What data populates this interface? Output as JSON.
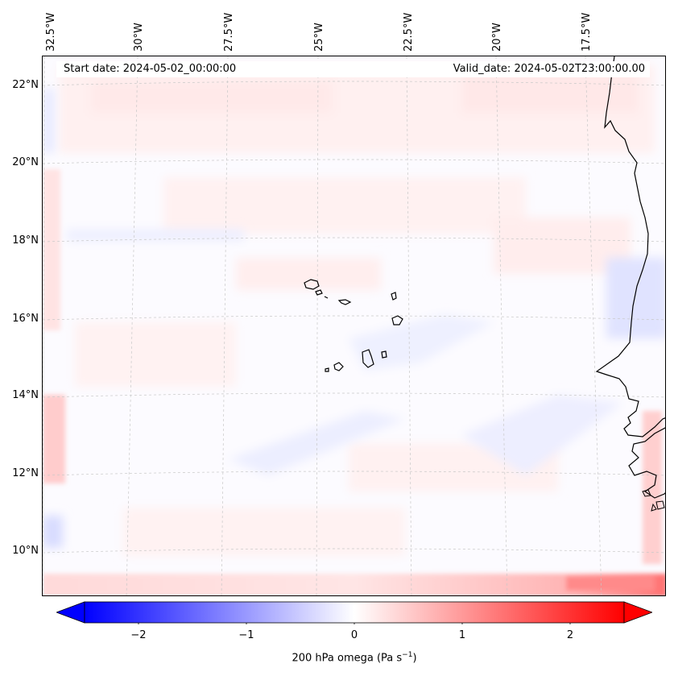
{
  "map": {
    "title_left_label": "Start date:",
    "start_date": "2024-05-02_00:00:00",
    "title_right_label": "Valid_date:",
    "valid_date": "2024-05-02T23:00:00.00",
    "lon_labels": [
      "32.5°W",
      "30°W",
      "27.5°W",
      "25°W",
      "22.5°W",
      "20°W",
      "17.5°W"
    ],
    "lat_labels": [
      "22°N",
      "20°N",
      "18°N",
      "16°N",
      "14°N",
      "12°N",
      "10°N"
    ],
    "extent": {
      "lon_min": -33.0,
      "lon_max": -16.7,
      "lat_min": 8.9,
      "lat_max": 22.8
    },
    "features": [
      "Cape Verde islands",
      "West African coastline"
    ]
  },
  "colorbar": {
    "label": "200 hPa omega (Pa s",
    "label_sup": "−1",
    "label_end": ")",
    "ticks": [
      "−2",
      "−1",
      "0",
      "1",
      "2"
    ],
    "tick_values": [
      -2,
      -1,
      0,
      1,
      2
    ],
    "range": [
      -2.5,
      2.5
    ],
    "colormap": "bwr",
    "extend": "both",
    "color_min": "#0000ff",
    "color_mid": "#ffffff",
    "color_max": "#ff0000"
  }
}
